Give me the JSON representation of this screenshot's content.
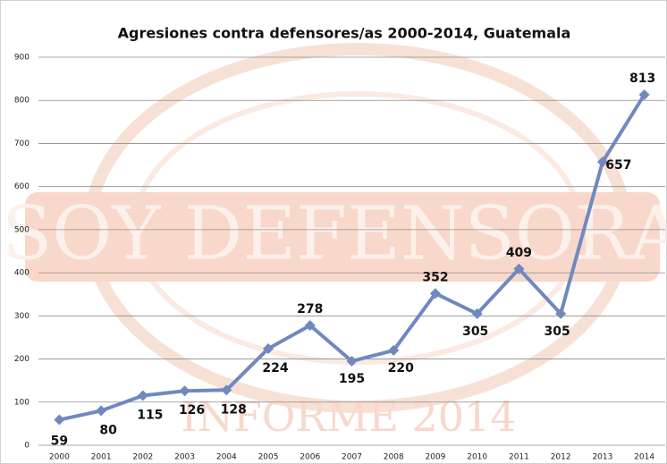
{
  "chart_data": {
    "type": "line",
    "title": "Agresiones contra defensores/as 2000-2014, Guatemala",
    "background_text": [
      "SOY DEFENSORA",
      "INFORME 2014"
    ],
    "categories": [
      "2000",
      "2001",
      "2002",
      "2003",
      "2004",
      "2005",
      "2006",
      "2007",
      "2008",
      "2009",
      "2010",
      "2011",
      "2012",
      "2013",
      "2014"
    ],
    "series": [
      {
        "color": "#6f89bf",
        "values": [
          59,
          80,
          115,
          126,
          128,
          224,
          278,
          195,
          220,
          352,
          305,
          409,
          305,
          657,
          813
        ]
      }
    ],
    "ylim": [
      0,
      900
    ],
    "yticks": [
      0,
      100,
      200,
      300,
      400,
      500,
      600,
      700,
      800,
      900
    ],
    "grid": true
  }
}
